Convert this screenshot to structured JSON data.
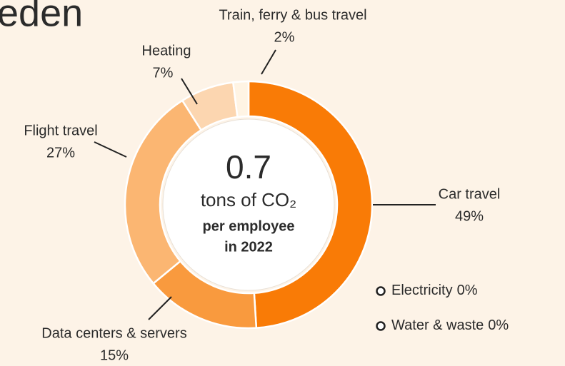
{
  "chart_data": {
    "type": "donut",
    "title": "eden",
    "categories": [
      "Car travel",
      "Data centers & servers",
      "Flight travel",
      "Heating",
      "Train, ferry & bus travel",
      "Electricity",
      "Water & waste"
    ],
    "values": [
      49,
      15,
      27,
      7,
      2,
      0,
      0
    ],
    "value_labels": [
      "49%",
      "15%",
      "27%",
      "7%",
      "2%",
      "0%",
      "0%"
    ],
    "colors": [
      "#f97b06",
      "#f99a3e",
      "#fbb672",
      "#fcd6b0",
      "#fff4e4",
      "#ffffff",
      "#ffffff"
    ],
    "center": {
      "value": "0.7",
      "unit": "tons of CO₂",
      "line2": "per employee",
      "line3": "in 2022"
    }
  }
}
